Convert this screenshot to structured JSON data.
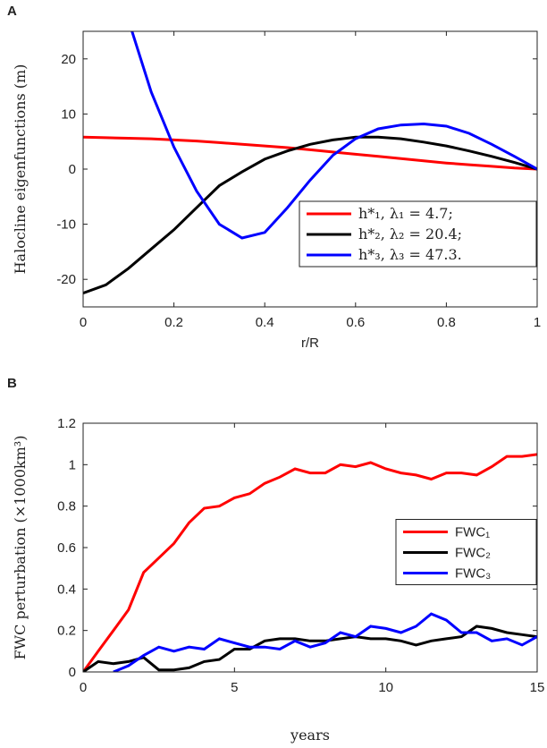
{
  "chart_data": [
    {
      "type": "line",
      "label": "A",
      "xlabel": "r/R",
      "ylabel": "Halocline eigenfunctions (m)",
      "x": [
        0,
        0.05,
        0.1,
        0.15,
        0.2,
        0.25,
        0.3,
        0.35,
        0.4,
        0.45,
        0.5,
        0.55,
        0.6,
        0.65,
        0.7,
        0.75,
        0.8,
        0.85,
        0.9,
        0.95,
        1
      ],
      "xlim": [
        0,
        1
      ],
      "ylim": [
        -25,
        25
      ],
      "xticks": [
        0,
        0.2,
        0.4,
        0.6,
        0.8,
        1
      ],
      "yticks": [
        -20,
        -10,
        0,
        10,
        20
      ],
      "legend": "lower right",
      "series": [
        {
          "name": "h*₁,    λ₁ = 4.7;",
          "color": "#ff0000",
          "values": [
            5.8,
            5.7,
            5.6,
            5.5,
            5.3,
            5.1,
            4.8,
            4.5,
            4.2,
            3.9,
            3.5,
            3.1,
            2.7,
            2.3,
            1.9,
            1.5,
            1.1,
            0.8,
            0.5,
            0.2,
            0
          ]
        },
        {
          "name": "h*₂,    λ₂ = 20.4;",
          "color": "#000000",
          "values": [
            -22.5,
            -21,
            -18,
            -14.5,
            -11,
            -7,
            -3,
            -0.5,
            1.8,
            3.3,
            4.5,
            5.3,
            5.8,
            5.8,
            5.5,
            4.9,
            4.2,
            3.3,
            2.3,
            1.2,
            0
          ]
        },
        {
          "name": "h*₃,    λ₃ = 47.3.",
          "color": "#0000ff",
          "values": [
            null,
            null,
            27,
            14,
            4,
            -4,
            -10,
            -12.5,
            -11.5,
            -7,
            -2,
            2.5,
            5.5,
            7.3,
            8,
            8.2,
            7.8,
            6.5,
            4.5,
            2.3,
            0
          ]
        }
      ]
    },
    {
      "type": "line",
      "label": "B",
      "xlabel": "years",
      "ylabel": "FWC perturbation (×1000km³)",
      "x": [
        0,
        0.5,
        1,
        1.5,
        2,
        2.5,
        3,
        3.5,
        4,
        4.5,
        5,
        5.5,
        6,
        6.5,
        7,
        7.5,
        8,
        8.5,
        9,
        9.5,
        10,
        10.5,
        11,
        11.5,
        12,
        12.5,
        13,
        13.5,
        14,
        14.5,
        15
      ],
      "xlim": [
        0,
        15
      ],
      "ylim": [
        0,
        1.2
      ],
      "xticks": [
        0,
        5,
        10,
        15
      ],
      "yticks": [
        0,
        0.2,
        0.4,
        0.6,
        0.8,
        1,
        1.2
      ],
      "legend": "right",
      "series": [
        {
          "name": "FWC₁",
          "color": "#ff0000",
          "values": [
            0,
            0.1,
            0.2,
            0.3,
            0.48,
            0.55,
            0.62,
            0.72,
            0.79,
            0.8,
            0.84,
            0.86,
            0.91,
            0.94,
            0.98,
            0.96,
            0.96,
            1.0,
            0.99,
            1.01,
            0.98,
            0.96,
            0.95,
            0.93,
            0.96,
            0.96,
            0.95,
            0.99,
            1.04,
            1.04,
            1.05
          ]
        },
        {
          "name": "FWC₂",
          "color": "#000000",
          "values": [
            0,
            0.05,
            0.04,
            0.05,
            0.07,
            0.01,
            0.01,
            0.02,
            0.05,
            0.06,
            0.11,
            0.11,
            0.15,
            0.16,
            0.16,
            0.15,
            0.15,
            0.16,
            0.17,
            0.16,
            0.16,
            0.15,
            0.13,
            0.15,
            0.16,
            0.17,
            0.22,
            0.21,
            0.19,
            0.18,
            0.17
          ]
        },
        {
          "name": "FWC₃",
          "color": "#0000ff",
          "values": [
            null,
            null,
            0,
            0.03,
            0.08,
            0.12,
            0.1,
            0.12,
            0.11,
            0.16,
            0.14,
            0.12,
            0.12,
            0.11,
            0.15,
            0.12,
            0.14,
            0.19,
            0.17,
            0.22,
            0.21,
            0.19,
            0.22,
            0.28,
            0.25,
            0.19,
            0.19,
            0.15,
            0.16,
            0.13,
            0.17
          ]
        }
      ]
    }
  ]
}
